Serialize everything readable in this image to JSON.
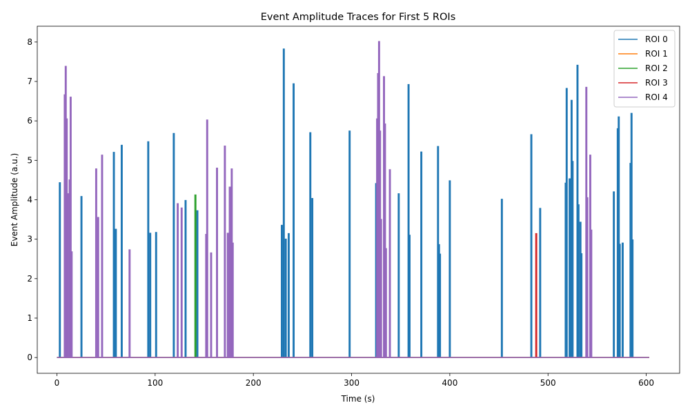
{
  "chart_data": {
    "type": "line",
    "title": "Event Amplitude Traces for First 5 ROIs",
    "xlabel": "Time (s)",
    "ylabel": "Event Amplitude (a.u.)",
    "xlim": [
      -20,
      634
    ],
    "ylim": [
      -0.4,
      8.4
    ],
    "xticks": [
      0,
      100,
      200,
      300,
      400,
      500,
      600
    ],
    "yticks": [
      0,
      1,
      2,
      3,
      4,
      5,
      6,
      7,
      8
    ],
    "x_range": [
      0,
      603
    ],
    "grid": false,
    "legend_position": "top-right",
    "series": [
      {
        "name": "ROI 0",
        "color": "#1f77b4",
        "events": [
          [
            3,
            4.43
          ],
          [
            25,
            4.08
          ],
          [
            58,
            5.2
          ],
          [
            60,
            3.25
          ],
          [
            66,
            5.38
          ],
          [
            93,
            5.47
          ],
          [
            95,
            3.15
          ],
          [
            101,
            3.17
          ],
          [
            119,
            5.68
          ],
          [
            131,
            3.98
          ],
          [
            143,
            3.72
          ],
          [
            229,
            3.35
          ],
          [
            231,
            7.82
          ],
          [
            233,
            3.0
          ],
          [
            236,
            3.14
          ],
          [
            241,
            6.94
          ],
          [
            258,
            5.7
          ],
          [
            260,
            4.03
          ],
          [
            298,
            5.74
          ],
          [
            325,
            4.41
          ],
          [
            327,
            3.95
          ],
          [
            348,
            4.15
          ],
          [
            358,
            6.92
          ],
          [
            359,
            3.1
          ],
          [
            371,
            5.21
          ],
          [
            388,
            5.35
          ],
          [
            389,
            2.86
          ],
          [
            390,
            2.62
          ],
          [
            400,
            4.48
          ],
          [
            453,
            4.01
          ],
          [
            483,
            5.65
          ],
          [
            492,
            3.78
          ],
          [
            518,
            4.42
          ],
          [
            519,
            6.82
          ],
          [
            522,
            4.53
          ],
          [
            524,
            6.52
          ],
          [
            525,
            4.97
          ],
          [
            530,
            7.41
          ],
          [
            531,
            3.87
          ],
          [
            533,
            3.43
          ],
          [
            534,
            2.63
          ],
          [
            567,
            4.2
          ],
          [
            571,
            5.8
          ],
          [
            572,
            6.1
          ],
          [
            573,
            2.87
          ],
          [
            576,
            2.9
          ],
          [
            584,
            4.92
          ],
          [
            585,
            6.19
          ],
          [
            586,
            2.98
          ]
        ]
      },
      {
        "name": "ROI 1",
        "color": "#ff7f0e",
        "events": []
      },
      {
        "name": "ROI 2",
        "color": "#2ca02c",
        "events": [
          [
            141,
            4.12
          ]
        ]
      },
      {
        "name": "ROI 3",
        "color": "#d62728",
        "events": [
          [
            488,
            3.14
          ]
        ]
      },
      {
        "name": "ROI 4",
        "color": "#9467bd",
        "events": [
          [
            8,
            6.66
          ],
          [
            9,
            7.38
          ],
          [
            10,
            6.05
          ],
          [
            11,
            4.15
          ],
          [
            13,
            4.5
          ],
          [
            14,
            6.6
          ],
          [
            15,
            2.68
          ],
          [
            40,
            4.78
          ],
          [
            42,
            3.55
          ],
          [
            46,
            5.13
          ],
          [
            74,
            2.73
          ],
          [
            123,
            3.9
          ],
          [
            127,
            3.79
          ],
          [
            152,
            3.12
          ],
          [
            153,
            6.02
          ],
          [
            157,
            2.65
          ],
          [
            163,
            4.8
          ],
          [
            171,
            5.36
          ],
          [
            174,
            3.15
          ],
          [
            176,
            4.32
          ],
          [
            178,
            4.78
          ],
          [
            179,
            2.9
          ],
          [
            326,
            6.05
          ],
          [
            327,
            7.2
          ],
          [
            328,
            8.01
          ],
          [
            329,
            5.74
          ],
          [
            330,
            3.5
          ],
          [
            333,
            7.12
          ],
          [
            334,
            5.92
          ],
          [
            335,
            2.76
          ],
          [
            339,
            4.76
          ],
          [
            539,
            6.85
          ],
          [
            540,
            4.05
          ],
          [
            543,
            5.13
          ],
          [
            544,
            3.23
          ]
        ]
      }
    ]
  }
}
